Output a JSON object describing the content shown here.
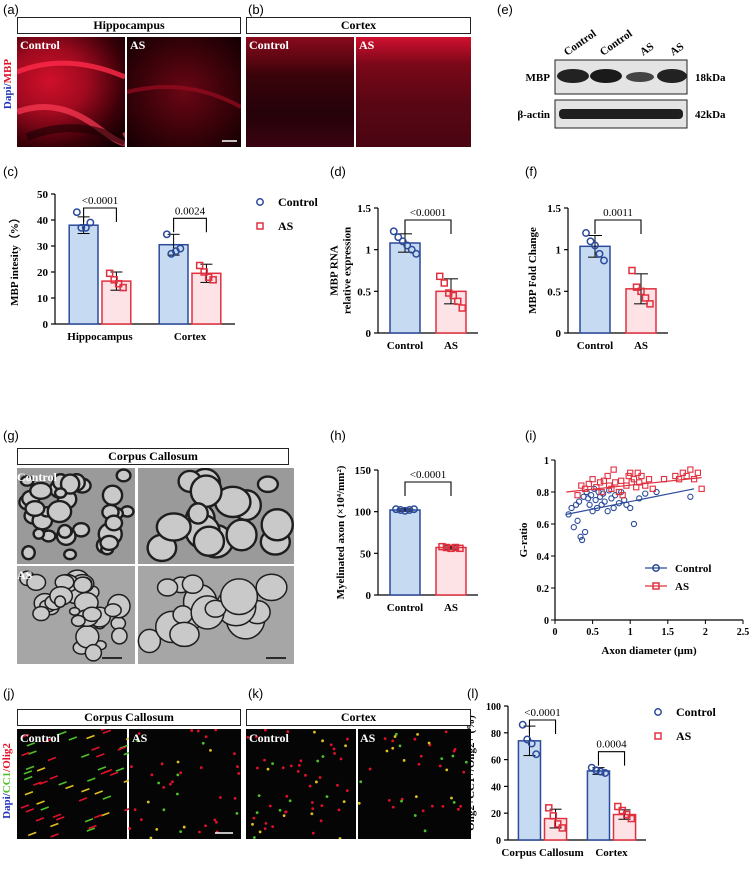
{
  "panel_labels": {
    "a": "(a)",
    "b": "(b)",
    "c": "(c)",
    "d": "(d)",
    "e": "(e)",
    "f": "(f)",
    "g": "(g)",
    "h": "(h)",
    "i": "(i)",
    "j": "(j)",
    "k": "(k)",
    "l": "(l)"
  },
  "colors": {
    "control_stroke": "#2b4a9a",
    "control_fill": "#c6dbf1",
    "as_stroke": "#e0303f",
    "as_fill": "#fde3e6",
    "mbp_red": "#e0102a",
    "cc1_green": "#4fbf2a",
    "dapi_blue": "#2233bb"
  },
  "panel_a": {
    "header": "Hippocampus",
    "stain_prefix": "Dapi/",
    "stain_suffix": "MBP",
    "left": "Control",
    "right": "AS"
  },
  "panel_b": {
    "header": "Cortex",
    "left": "Control",
    "right": "AS"
  },
  "panel_e": {
    "lanes": [
      "Control",
      "Control",
      "AS",
      "AS"
    ],
    "rows": [
      {
        "name": "MBP",
        "kda": "18kDa"
      },
      {
        "name": "β-actin",
        "kda": "42kDa"
      }
    ]
  },
  "panel_g": {
    "header": "Corpus Callosum",
    "top_left": "Control",
    "bottom_left": "AS"
  },
  "panel_j": {
    "header": "Corpus Callosum",
    "stain_a": "Dapi/",
    "stain_b": "CC1",
    "stain_c": "/Olig2",
    "left": "Control",
    "right": "AS"
  },
  "panel_k": {
    "header": "Cortex",
    "left": "Control",
    "right": "AS"
  },
  "chart_data": [
    {
      "id": "c",
      "type": "bar",
      "categories": [
        "Hippocampus",
        "Cortex"
      ],
      "series": [
        {
          "name": "Control",
          "values": [
            38,
            30.5
          ],
          "err": [
            3.2,
            4
          ],
          "points": [
            [
              43,
              37,
              37,
              39
            ],
            [
              34.5,
              27,
              28,
              29
            ]
          ]
        },
        {
          "name": "AS",
          "values": [
            16.5,
            19.5
          ],
          "err": [
            3.5,
            3.5
          ],
          "points": [
            [
              19.5,
              17,
              15.5,
              14
            ],
            [
              22.5,
              20,
              18,
              17
            ]
          ]
        }
      ],
      "ylabel": "MBP intesity（%）",
      "ylim": [
        0,
        50
      ],
      "yticks": [
        0,
        10,
        20,
        30,
        40,
        50
      ],
      "significance": [
        "<0.0001",
        "0.0024"
      ],
      "legend": [
        "Control",
        "AS"
      ],
      "legend_position": "right"
    },
    {
      "id": "d",
      "type": "bar",
      "categories": [
        "Control",
        "AS"
      ],
      "values": [
        1.08,
        0.5
      ],
      "err": [
        0.11,
        0.15
      ],
      "points": [
        [
          1.22,
          1.15,
          1.1,
          1.05,
          1.0,
          0.95
        ],
        [
          0.68,
          0.6,
          0.48,
          0.45,
          0.38,
          0.3
        ]
      ],
      "ylabel": "MBP RNA relative expression",
      "ylim": [
        0,
        1.5
      ],
      "yticks": [
        0,
        0.5,
        1.0,
        1.5
      ],
      "significance": [
        "<0.0001"
      ]
    },
    {
      "id": "f",
      "type": "bar",
      "categories": [
        "Control",
        "AS"
      ],
      "values": [
        1.04,
        0.53
      ],
      "err": [
        0.13,
        0.18
      ],
      "points": [
        [
          1.2,
          1.1,
          1.05,
          0.95,
          0.87
        ],
        [
          0.75,
          0.55,
          0.5,
          0.42,
          0.35
        ]
      ],
      "ylabel": "MBP Fold Change",
      "ylim": [
        0,
        1.5
      ],
      "yticks": [
        0,
        0.5,
        1.0,
        1.5
      ],
      "significance": [
        "0.0011"
      ]
    },
    {
      "id": "h",
      "type": "bar",
      "categories": [
        "Control",
        "AS"
      ],
      "values": [
        102,
        57
      ],
      "err": [
        1.5,
        2
      ],
      "points": [
        [
          103,
          102,
          101,
          102,
          103
        ],
        [
          58,
          57,
          56,
          57,
          56
        ]
      ],
      "ylabel": "Myelinated axon (×10⁴/mm²)",
      "ylim": [
        0,
        150
      ],
      "yticks": [
        0,
        50,
        100,
        150
      ],
      "significance": [
        "<0.0001"
      ]
    },
    {
      "id": "i",
      "type": "scatter",
      "xlabel": "Axon diameter (μm)",
      "ylabel": "G-ratio",
      "xlim": [
        0,
        2.5
      ],
      "ylim": [
        0,
        1.0
      ],
      "xticks": [
        0,
        0.5,
        1.0,
        1.5,
        2.0,
        2.5
      ],
      "yticks": [
        0,
        0.2,
        0.4,
        0.6,
        0.8,
        1.0
      ],
      "legend": [
        "Control",
        "AS"
      ],
      "legend_position": "bottom-right",
      "series": [
        {
          "name": "Control",
          "trend": [
            [
              0.15,
              0.66
            ],
            [
              1.85,
              0.82
            ]
          ],
          "points": [
            [
              0.18,
              0.66
            ],
            [
              0.22,
              0.7
            ],
            [
              0.25,
              0.58
            ],
            [
              0.28,
              0.72
            ],
            [
              0.3,
              0.62
            ],
            [
              0.32,
              0.74
            ],
            [
              0.34,
              0.52
            ],
            [
              0.36,
              0.5
            ],
            [
              0.38,
              0.77
            ],
            [
              0.4,
              0.55
            ],
            [
              0.42,
              0.8
            ],
            [
              0.44,
              0.76
            ],
            [
              0.46,
              0.72
            ],
            [
              0.48,
              0.78
            ],
            [
              0.5,
              0.68
            ],
            [
              0.52,
              0.82
            ],
            [
              0.54,
              0.75
            ],
            [
              0.56,
              0.7
            ],
            [
              0.58,
              0.8
            ],
            [
              0.6,
              0.77
            ],
            [
              0.62,
              0.72
            ],
            [
              0.64,
              0.79
            ],
            [
              0.66,
              0.74
            ],
            [
              0.7,
              0.68
            ],
            [
              0.72,
              0.81
            ],
            [
              0.75,
              0.76
            ],
            [
              0.78,
              0.7
            ],
            [
              0.8,
              0.78
            ],
            [
              0.85,
              0.73
            ],
            [
              0.88,
              0.8
            ],
            [
              0.92,
              0.75
            ],
            [
              0.95,
              0.72
            ],
            [
              1.0,
              0.7
            ],
            [
              1.05,
              0.6
            ],
            [
              1.12,
              0.76
            ],
            [
              1.2,
              0.79
            ],
            [
              1.35,
              0.8
            ],
            [
              1.8,
              0.77
            ]
          ]
        },
        {
          "name": "AS",
          "trend": [
            [
              0.15,
              0.8
            ],
            [
              1.95,
              0.89
            ]
          ],
          "points": [
            [
              0.3,
              0.78
            ],
            [
              0.35,
              0.84
            ],
            [
              0.4,
              0.82
            ],
            [
              0.45,
              0.85
            ],
            [
              0.5,
              0.88
            ],
            [
              0.55,
              0.83
            ],
            [
              0.6,
              0.86
            ],
            [
              0.62,
              0.8
            ],
            [
              0.65,
              0.87
            ],
            [
              0.7,
              0.9
            ],
            [
              0.72,
              0.84
            ],
            [
              0.75,
              0.82
            ],
            [
              0.78,
              0.94
            ],
            [
              0.8,
              0.86
            ],
            [
              0.85,
              0.8
            ],
            [
              0.88,
              0.87
            ],
            [
              0.9,
              0.78
            ],
            [
              0.95,
              0.84
            ],
            [
              0.98,
              0.9
            ],
            [
              1.0,
              0.92
            ],
            [
              1.02,
              0.86
            ],
            [
              1.05,
              0.88
            ],
            [
              1.08,
              0.83
            ],
            [
              1.1,
              0.92
            ],
            [
              1.12,
              0.86
            ],
            [
              1.15,
              0.9
            ],
            [
              1.2,
              0.84
            ],
            [
              1.25,
              0.88
            ],
            [
              1.3,
              0.82
            ],
            [
              1.45,
              0.88
            ],
            [
              1.6,
              0.9
            ],
            [
              1.65,
              0.88
            ],
            [
              1.7,
              0.92
            ],
            [
              1.75,
              0.9
            ],
            [
              1.8,
              0.94
            ],
            [
              1.85,
              0.88
            ],
            [
              1.9,
              0.92
            ],
            [
              1.95,
              0.82
            ]
          ]
        }
      ]
    },
    {
      "id": "l",
      "type": "bar",
      "categories": [
        "Corpus Callosum",
        "Cortex"
      ],
      "series": [
        {
          "name": "Control",
          "values": [
            74,
            51.5
          ],
          "err": [
            11,
            2.5
          ],
          "points": [
            [
              86,
              75,
              72,
              64
            ],
            [
              54,
              52,
              51,
              50
            ]
          ]
        },
        {
          "name": "AS",
          "values": [
            16,
            19
          ],
          "err": [
            7,
            3.5
          ],
          "points": [
            [
              24,
              18,
              12,
              9
            ],
            [
              25,
              22,
              19,
              16
            ]
          ]
        }
      ],
      "ylabel": "Olig2+CC1+/Olig2+ (%)",
      "ylim": [
        0,
        100
      ],
      "yticks": [
        0,
        20,
        40,
        60,
        80,
        100
      ],
      "significance": [
        "<0.0001",
        "0.0004"
      ],
      "legend": [
        "Control",
        "AS"
      ],
      "legend_position": "right"
    }
  ]
}
